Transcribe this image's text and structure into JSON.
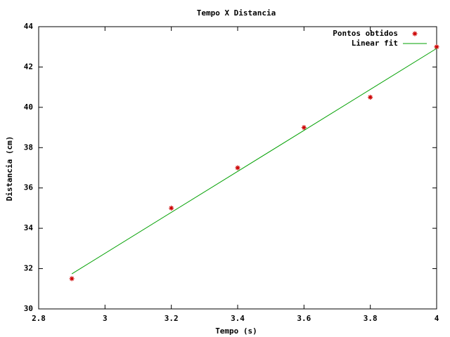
{
  "chart_data": {
    "type": "scatter",
    "title": "Tempo X Distancia",
    "x_label": "Tempo (s)",
    "y_label": "Distancia (cm)",
    "series": [
      {
        "name": "Pontos obtidos",
        "color": "#cc0000",
        "mode": "markers",
        "x": [
          2.9,
          3.2,
          3.4,
          3.6,
          3.8,
          4.0
        ],
        "values": [
          31.5,
          35,
          37,
          39,
          40.5,
          43
        ]
      },
      {
        "name": "Linear fit",
        "color": "#00a000",
        "mode": "line",
        "x": [
          2.9,
          4.0
        ],
        "values": [
          31.74,
          42.92
        ]
      }
    ],
    "xlim": [
      2.8,
      4
    ],
    "xticks": [
      2.8,
      3,
      3.2,
      3.4,
      3.6,
      3.8,
      4
    ],
    "ylim": [
      30,
      44
    ],
    "yticks": [
      30,
      32,
      34,
      36,
      38,
      40,
      42,
      44
    ],
    "legend": "top-right"
  }
}
